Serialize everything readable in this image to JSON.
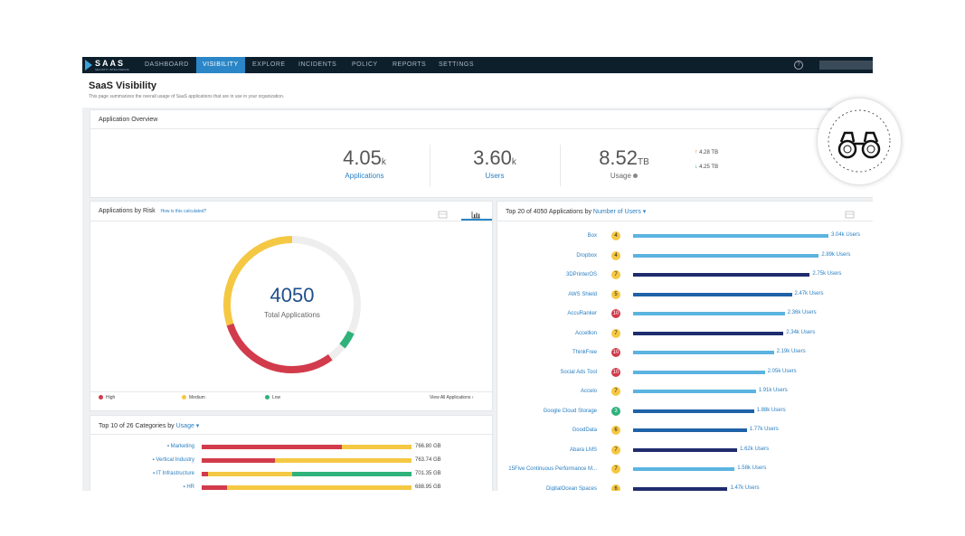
{
  "nav": {
    "logo_text": "SAAS",
    "logo_sub": "SECURITY INTELLIGENCE",
    "items": [
      "DASHBOARD",
      "VISIBILITY",
      "EXPLORE",
      "INCIDENTS",
      "POLICY",
      "REPORTS",
      "SETTINGS"
    ],
    "active_index": 1,
    "help": "?"
  },
  "page": {
    "title": "SaaS Visibility",
    "subtitle": "This page summarizes the overall usage of SaaS applications that are in use in your organization."
  },
  "overview": {
    "title": "Application Overview",
    "stats": [
      {
        "value": "4.05",
        "unit": "k",
        "label": "Applications"
      },
      {
        "value": "3.60",
        "unit": "k",
        "label": "Users"
      },
      {
        "value": "8.52",
        "unit": "TB",
        "label": "Usage"
      }
    ],
    "up": "4.28 TB",
    "down": "4.25 TB",
    "info_icon": "info-icon"
  },
  "risk": {
    "title": "Applications by Risk",
    "help_link": "How is this calculated?",
    "total": "4050",
    "total_label": "Total Applications",
    "legend": [
      "High",
      "Medium",
      "Low"
    ],
    "view_all": "View All Applications",
    "colors": {
      "high": "#d23b4b",
      "medium": "#f5c843",
      "low": "#2fb27a"
    },
    "fractions": {
      "high": 0.3,
      "medium": 0.66,
      "low": 0.04
    }
  },
  "categories": {
    "title_prefix": "Top 10 of 26 Categories by",
    "sort": "Usage",
    "rows": [
      {
        "name": "Marketing",
        "value": "766.80 GB",
        "segments": [
          0.67,
          0.33,
          0.0
        ]
      },
      {
        "name": "Vertical Industry",
        "value": "763.74 GB",
        "segments": [
          0.35,
          0.65,
          0.0
        ]
      },
      {
        "name": "IT Infrastructure",
        "value": "701.35 GB",
        "segments": [
          0.03,
          0.4,
          0.57
        ]
      },
      {
        "name": "HR",
        "value": "688.95 GB",
        "segments": [
          0.12,
          0.88,
          0.0
        ]
      }
    ]
  },
  "top": {
    "title_prefix": "Top 20 of 4050 Applications by",
    "sort": "Number of Users",
    "rows": [
      {
        "name": "Box",
        "risk": "4",
        "value": "3.04k Users",
        "users": 3040,
        "color": "#5bb4e0"
      },
      {
        "name": "Dropbox",
        "risk": "4",
        "value": "2.89k Users",
        "users": 2890,
        "color": "#5bb4e0"
      },
      {
        "name": "3DPrinterOS",
        "risk": "7",
        "value": "2.75k Users",
        "users": 2750,
        "color": "#1f2c6e"
      },
      {
        "name": "AWS Shield",
        "risk": "5",
        "value": "2.47k Users",
        "users": 2470,
        "color": "#1f62a8"
      },
      {
        "name": "AccuRanker",
        "risk": "10",
        "value": "2.36k Users",
        "users": 2360,
        "color": "#5bb4e0"
      },
      {
        "name": "Accellion",
        "risk": "7",
        "value": "2.34k Users",
        "users": 2340,
        "color": "#1f2c6e"
      },
      {
        "name": "ThinkFree",
        "risk": "10",
        "value": "2.19k Users",
        "users": 2190,
        "color": "#5bb4e0"
      },
      {
        "name": "Social Ads Tool",
        "risk": "10",
        "value": "2.05k Users",
        "users": 2050,
        "color": "#5bb4e0"
      },
      {
        "name": "Accelo",
        "risk": "7",
        "value": "1.91k Users",
        "users": 1910,
        "color": "#5bb4e0"
      },
      {
        "name": "Google Cloud Storage",
        "risk": "3",
        "value": "1.88k Users",
        "users": 1880,
        "color": "#1f62a8"
      },
      {
        "name": "GoodData",
        "risk": "6",
        "value": "1.77k Users",
        "users": 1770,
        "color": "#1f62a8"
      },
      {
        "name": "Abara LMS",
        "risk": "7",
        "value": "1.62k Users",
        "users": 1620,
        "color": "#1f2c6e"
      },
      {
        "name": "15Five Continuous Performance M...",
        "risk": "7",
        "value": "1.58k Users",
        "users": 1580,
        "color": "#5bb4e0"
      },
      {
        "name": "DigitalOcean Spaces",
        "risk": "6",
        "value": "1.47k Users",
        "users": 1470,
        "color": "#1f2c6e"
      }
    ],
    "badge_colors": {
      "4": "yellow",
      "7": "yellow",
      "5": "yellow",
      "10": "red",
      "3": "green",
      "6": "yellow"
    }
  }
}
